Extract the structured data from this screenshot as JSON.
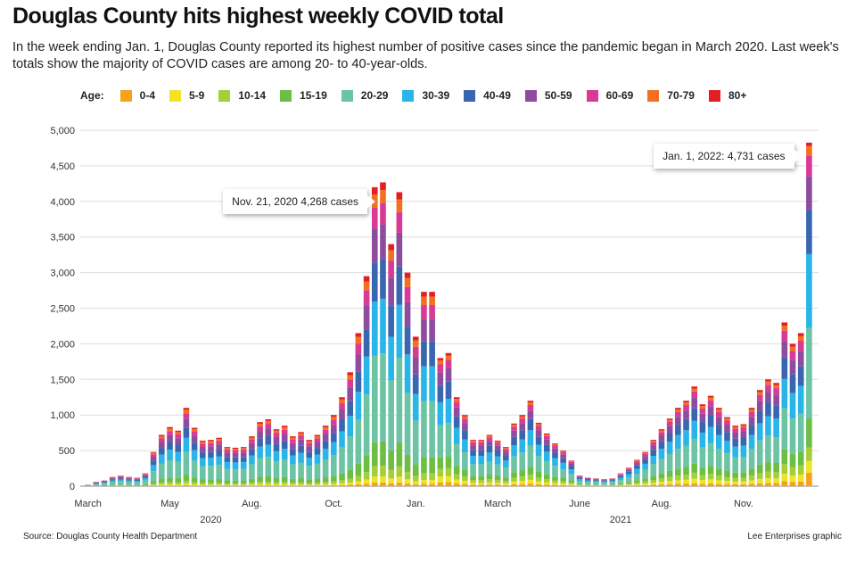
{
  "headline": "Douglas County hits highest weekly COVID total",
  "dek": "In the week ending Jan. 1, Douglas County reported its highest number of positive cases since the pandemic began in March 2020. Last week's totals show the majority of COVID cases are among 20- to 40-year-olds.",
  "legend_title": "Age:",
  "source": "Source: Douglas County Health Department",
  "credit": "Lee Enterprises graphic",
  "chart_data": {
    "type": "bar",
    "stacked": true,
    "title": "Douglas County hits highest weekly COVID total",
    "ylim": [
      0,
      5000
    ],
    "y_ticks": [
      0,
      500,
      1000,
      1500,
      2000,
      2500,
      3000,
      3500,
      4000,
      4500,
      5000
    ],
    "y_tick_labels": [
      "0",
      "500",
      "1,000",
      "1,500",
      "2,000",
      "2,500",
      "3,000",
      "3,500",
      "4,000",
      "4,500",
      "5,000"
    ],
    "x_ticks": [
      {
        "week": 0,
        "label": "March"
      },
      {
        "week": 10,
        "label": "May"
      },
      {
        "week": 20,
        "label": "Aug."
      },
      {
        "week": 30,
        "label": "Oct."
      },
      {
        "week": 40,
        "label": "Jan."
      },
      {
        "week": 50,
        "label": "March"
      },
      {
        "week": 60,
        "label": "June"
      },
      {
        "week": 70,
        "label": "Aug."
      },
      {
        "week": 80,
        "label": "Nov."
      }
    ],
    "year_labels": [
      {
        "week": 15,
        "label": "2020"
      },
      {
        "week": 65,
        "label": "2021"
      }
    ],
    "age_groups": [
      "0-4",
      "5-9",
      "10-14",
      "15-19",
      "20-29",
      "30-39",
      "40-49",
      "50-59",
      "60-69",
      "70-79",
      "80+"
    ],
    "colors": [
      "#F7A21B",
      "#F2E424",
      "#A6CE39",
      "#6CBE45",
      "#6CC4A4",
      "#29B5E8",
      "#3A66B0",
      "#8E4C9E",
      "#D83A95",
      "#F37021",
      "#E31E24"
    ],
    "shares": {
      "2020": [
        0.012,
        0.02,
        0.035,
        0.08,
        0.29,
        0.18,
        0.13,
        0.115,
        0.07,
        0.043,
        0.025
      ],
      "2021": [
        0.03,
        0.045,
        0.06,
        0.09,
        0.25,
        0.18,
        0.13,
        0.1,
        0.065,
        0.03,
        0.02
      ],
      "final_week": [
        0.04,
        0.035,
        0.04,
        0.085,
        0.27,
        0.22,
        0.13,
        0.1,
        0.06,
        0.03,
        0.01
      ]
    },
    "totals": [
      20,
      60,
      80,
      130,
      150,
      130,
      120,
      180,
      480,
      720,
      830,
      780,
      1100,
      820,
      640,
      650,
      680,
      550,
      540,
      550,
      700,
      900,
      940,
      800,
      850,
      700,
      760,
      650,
      720,
      850,
      1000,
      1250,
      1600,
      2150,
      2950,
      4200,
      4268,
      3400,
      4130,
      3000,
      2100,
      2730,
      2730,
      1800,
      1870,
      1250,
      1000,
      650,
      650,
      720,
      640,
      550,
      880,
      1000,
      1200,
      890,
      740,
      600,
      500,
      360,
      150,
      120,
      110,
      100,
      110,
      180,
      260,
      370,
      480,
      650,
      800,
      950,
      1100,
      1200,
      1400,
      1150,
      1270,
      1100,
      970,
      850,
      870,
      1100,
      1350,
      1500,
      1450,
      2300,
      2000,
      2150,
      4731
    ],
    "annotations": [
      {
        "week": 36,
        "value": 4268,
        "text": "Nov. 21, 2020 4,268 cases"
      },
      {
        "week": 88,
        "value": 4731,
        "text": "Jan. 1, 2022: 4,731 cases"
      }
    ]
  }
}
